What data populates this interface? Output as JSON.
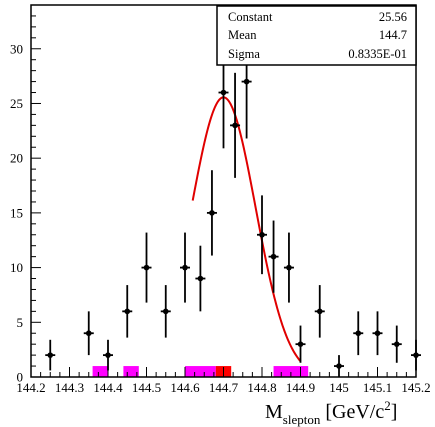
{
  "stats_box": {
    "rows": [
      {
        "label": "Constant",
        "value": "25.56"
      },
      {
        "label": "Mean",
        "value": "144.7"
      },
      {
        "label": "Sigma",
        "value": "0.8335E-01"
      }
    ]
  },
  "axis_title": {
    "main": "M",
    "sub": "slepton",
    "units_open": "[GeV/c",
    "sup": "2",
    "units_close": "]"
  },
  "chart_data": {
    "type": "scatter",
    "title": "",
    "xlabel": "M_slepton [GeV/c^2]",
    "ylabel": "",
    "xlim": [
      144.2,
      145.2
    ],
    "ylim": [
      0,
      34
    ],
    "x_ticks": [
      "144.2",
      "144.3",
      "144.4",
      "144.5",
      "144.6",
      "144.7",
      "144.8",
      "144.9",
      "145",
      "145.1",
      "145.2"
    ],
    "y_ticks": [
      "0",
      "5",
      "10",
      "15",
      "20",
      "25",
      "30"
    ],
    "grid": false,
    "legend": "none",
    "series": [
      {
        "style": "points-with-error-bars",
        "color": "#000000",
        "points": [
          {
            "x": 144.25,
            "y": 2,
            "err": 1.4
          },
          {
            "x": 144.35,
            "y": 4,
            "err": 2.0
          },
          {
            "x": 144.4,
            "y": 2,
            "err": 1.4
          },
          {
            "x": 144.45,
            "y": 6,
            "err": 2.4
          },
          {
            "x": 144.5,
            "y": 10,
            "err": 3.2
          },
          {
            "x": 144.55,
            "y": 6,
            "err": 2.4
          },
          {
            "x": 144.6,
            "y": 10,
            "err": 3.2
          },
          {
            "x": 144.64,
            "y": 9,
            "err": 3.0
          },
          {
            "x": 144.67,
            "y": 15,
            "err": 3.9
          },
          {
            "x": 144.7,
            "y": 26,
            "err": 5.1
          },
          {
            "x": 144.73,
            "y": 23,
            "err": 4.8
          },
          {
            "x": 144.76,
            "y": 27,
            "err": 5.2
          },
          {
            "x": 144.8,
            "y": 13,
            "err": 3.6
          },
          {
            "x": 144.83,
            "y": 11,
            "err": 3.3
          },
          {
            "x": 144.87,
            "y": 10,
            "err": 3.2
          },
          {
            "x": 144.9,
            "y": 3,
            "err": 1.7
          },
          {
            "x": 144.95,
            "y": 6,
            "err": 2.4
          },
          {
            "x": 145.0,
            "y": 1,
            "err": 1.0
          },
          {
            "x": 145.05,
            "y": 4,
            "err": 2.0
          },
          {
            "x": 145.1,
            "y": 4,
            "err": 2.0
          },
          {
            "x": 145.15,
            "y": 3,
            "err": 1.7
          },
          {
            "x": 145.2,
            "y": 2,
            "err": 1.4
          }
        ]
      },
      {
        "style": "fit-curve",
        "color": "#e00000",
        "curve": "gaussian",
        "constant": 25.56,
        "mean": 144.7,
        "sigma": 0.08335,
        "x_range": [
          144.62,
          144.9
        ]
      },
      {
        "style": "filled-bars",
        "color": "#ff00ff",
        "bins": [
          {
            "x0": 144.36,
            "x1": 144.4,
            "y": 1
          },
          {
            "x0": 144.44,
            "x1": 144.48,
            "y": 1
          },
          {
            "x0": 144.6,
            "x1": 144.68,
            "y": 1
          },
          {
            "x0": 144.83,
            "x1": 144.92,
            "y": 1
          }
        ]
      },
      {
        "style": "filled-bars",
        "color": "#ff0000",
        "bins": [
          {
            "x0": 144.68,
            "x1": 144.72,
            "y": 1
          }
        ]
      }
    ]
  }
}
